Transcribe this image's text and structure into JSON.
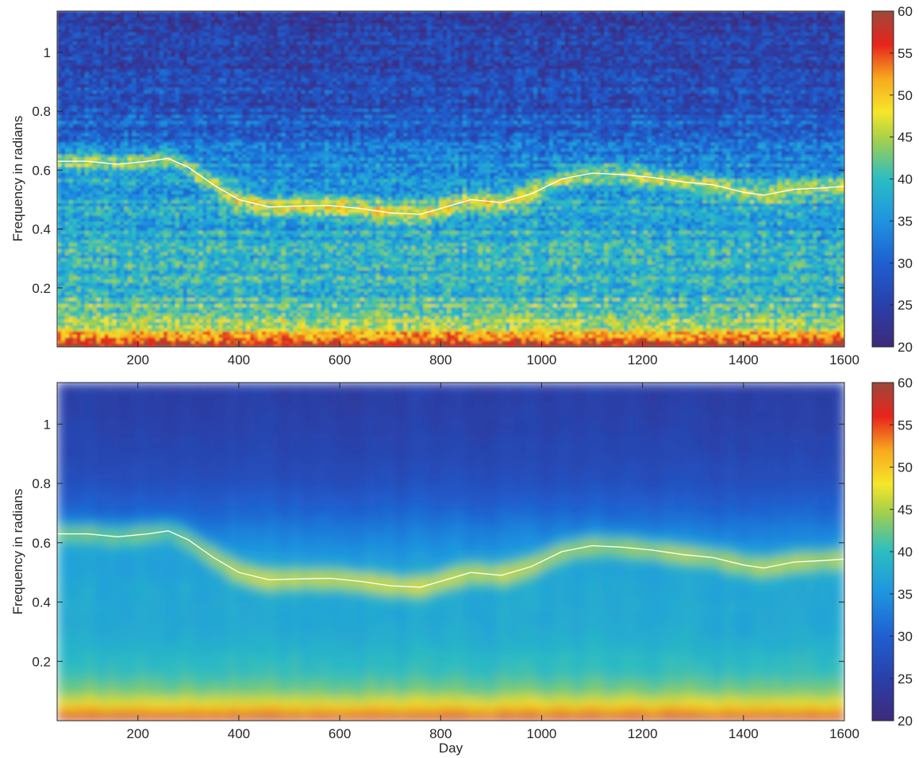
{
  "chart_data": [
    {
      "type": "heatmap",
      "panel": "top",
      "xlabel": "",
      "ylabel": "Frequency in radians",
      "xlim": [
        40,
        1600
      ],
      "ylim": [
        0,
        1.14
      ],
      "xticks": [
        200,
        400,
        600,
        800,
        1000,
        1200,
        1400,
        1600
      ],
      "yticks": [
        0.2,
        0.4,
        0.6,
        0.8,
        1
      ],
      "colorbar": {
        "min": 20,
        "max": 60,
        "ticks": [
          20,
          25,
          30,
          35,
          40,
          45,
          50,
          55,
          60
        ],
        "colormap": "parula-like"
      },
      "ridge_line": {
        "color": "#ffffff",
        "x": [
          40,
          100,
          160,
          220,
          260,
          300,
          350,
          400,
          460,
          520,
          580,
          640,
          700,
          760,
          800,
          860,
          920,
          980,
          1040,
          1100,
          1160,
          1220,
          1280,
          1340,
          1400,
          1440,
          1500,
          1560,
          1600
        ],
        "y": [
          0.63,
          0.63,
          0.62,
          0.63,
          0.64,
          0.61,
          0.55,
          0.5,
          0.475,
          0.478,
          0.48,
          0.47,
          0.455,
          0.45,
          0.47,
          0.5,
          0.49,
          0.52,
          0.57,
          0.59,
          0.585,
          0.575,
          0.56,
          0.55,
          0.525,
          0.515,
          0.535,
          0.54,
          0.545
        ]
      }
    },
    {
      "type": "heatmap",
      "panel": "bottom",
      "xlabel": "Day",
      "ylabel": "Frequency in radians",
      "xlim": [
        40,
        1600
      ],
      "ylim": [
        0,
        1.14
      ],
      "xticks": [
        200,
        400,
        600,
        800,
        1000,
        1200,
        1400,
        1600
      ],
      "yticks": [
        0.2,
        0.4,
        0.6,
        0.8,
        1
      ],
      "colorbar": {
        "min": 20,
        "max": 60,
        "ticks": [
          20,
          25,
          30,
          35,
          40,
          45,
          50,
          55,
          60
        ],
        "colormap": "parula-like"
      },
      "ridge_line": {
        "color": "#ffffff",
        "x": [
          40,
          100,
          160,
          220,
          260,
          300,
          350,
          400,
          460,
          520,
          580,
          640,
          700,
          760,
          800,
          860,
          920,
          980,
          1040,
          1100,
          1160,
          1220,
          1280,
          1340,
          1400,
          1440,
          1500,
          1560,
          1600
        ],
        "y": [
          0.63,
          0.63,
          0.62,
          0.63,
          0.64,
          0.61,
          0.55,
          0.5,
          0.475,
          0.478,
          0.48,
          0.47,
          0.455,
          0.45,
          0.47,
          0.5,
          0.49,
          0.52,
          0.57,
          0.59,
          0.585,
          0.575,
          0.56,
          0.55,
          0.525,
          0.515,
          0.535,
          0.54,
          0.545
        ]
      }
    }
  ]
}
